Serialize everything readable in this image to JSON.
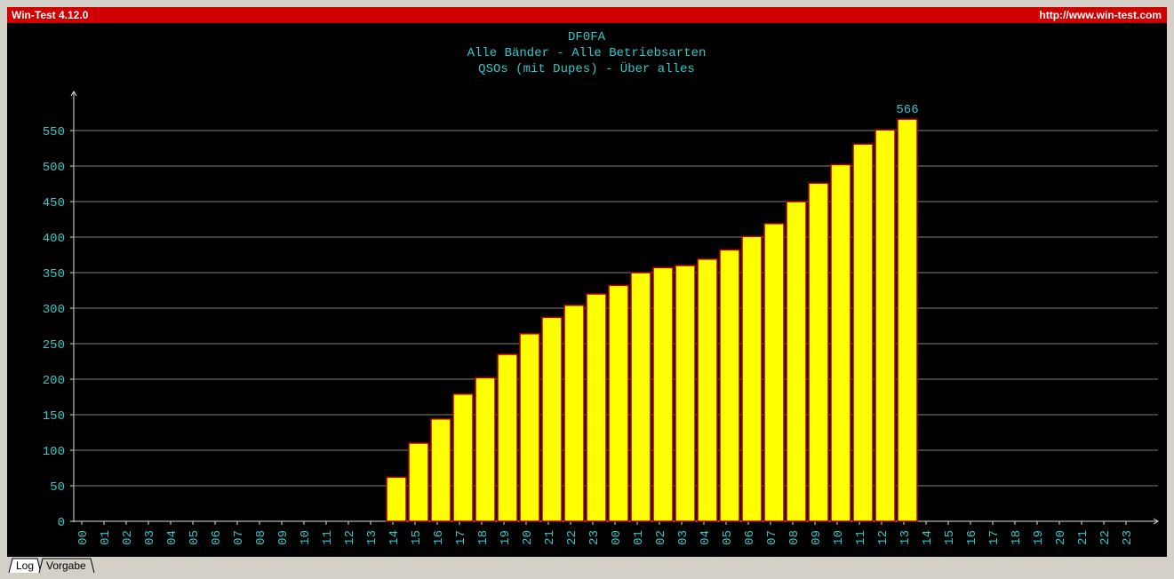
{
  "window": {
    "title": "Win-Test 4.12.0",
    "url": "http://www.win-test.com",
    "tabs": [
      "Log",
      "Vorgabe"
    ]
  },
  "chart_data": {
    "type": "bar",
    "title": "DF0FA",
    "subtitle": [
      "Alle Bänder - Alle Betriebsarten",
      "QSOs (mit Dupes) - Über alles"
    ],
    "categories": [
      "00",
      "01",
      "02",
      "03",
      "04",
      "05",
      "06",
      "07",
      "08",
      "09",
      "10",
      "11",
      "12",
      "13",
      "14",
      "15",
      "16",
      "17",
      "18",
      "19",
      "20",
      "21",
      "22",
      "23",
      "00",
      "01",
      "02",
      "03",
      "04",
      "05",
      "06",
      "07",
      "08",
      "09",
      "10",
      "11",
      "12",
      "13",
      "14",
      "15",
      "16",
      "17",
      "18",
      "19",
      "20",
      "21",
      "22",
      "23"
    ],
    "values": [
      null,
      null,
      null,
      null,
      null,
      null,
      null,
      null,
      null,
      null,
      null,
      null,
      null,
      null,
      62,
      110,
      144,
      179,
      202,
      235,
      264,
      287,
      304,
      320,
      332,
      350,
      357,
      360,
      369,
      382,
      401,
      419,
      450,
      476,
      502,
      531,
      551,
      566,
      null,
      null,
      null,
      null,
      null,
      null,
      null,
      null,
      null,
      null
    ],
    "color": "#ffff00",
    "edge_color": "#b00000",
    "ylim": [
      0,
      605
    ],
    "yticks": [
      0,
      50,
      100,
      150,
      200,
      250,
      300,
      350,
      400,
      450,
      500,
      550
    ],
    "grid": true
  }
}
